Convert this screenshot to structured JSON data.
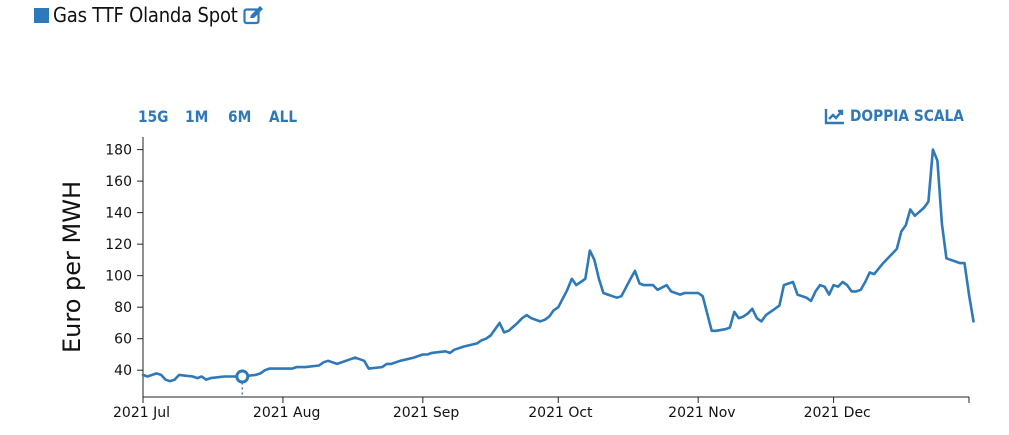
{
  "header": {
    "title": "Gas TTF Olanda Spot",
    "legend_icon": "square",
    "edit_icon": "edit-icon"
  },
  "controls": {
    "ranges": [
      "15G",
      "1M",
      "6M",
      "ALL"
    ],
    "dual_scale_label": "DOPPIA SCALA",
    "dual_scale_icon": "line-chart-icon"
  },
  "colors": {
    "accent": "#2f79b8",
    "line": "#2f79b8"
  },
  "chart_data": {
    "type": "line",
    "ylabel": "Euro per MWH",
    "ylim": [
      23,
      188
    ],
    "yticks": [
      40,
      60,
      80,
      100,
      120,
      140,
      160,
      180
    ],
    "xlim": [
      "2021-07-01",
      "2021-12-31"
    ],
    "xticks": [
      {
        "date": "2021-07-01",
        "label": "2021 Jul"
      },
      {
        "date": "2021-08-01",
        "label": "2021 Aug"
      },
      {
        "date": "2021-09-01",
        "label": "2021 Sep"
      },
      {
        "date": "2021-10-01",
        "label": "2021 Oct"
      },
      {
        "date": "2021-11-01",
        "label": "2021 Nov"
      },
      {
        "date": "2021-12-01",
        "label": "2021 Dec"
      }
    ],
    "grid": false,
    "highlight_date": "2021-07-23",
    "series": [
      {
        "points": [
          [
            "2021-07-01",
            37
          ],
          [
            "2021-07-02",
            36
          ],
          [
            "2021-07-04",
            38
          ],
          [
            "2021-07-05",
            37
          ],
          [
            "2021-07-06",
            34
          ],
          [
            "2021-07-07",
            33
          ],
          [
            "2021-07-08",
            34
          ],
          [
            "2021-07-09",
            37
          ],
          [
            "2021-07-12",
            36
          ],
          [
            "2021-07-13",
            35
          ],
          [
            "2021-07-14",
            36
          ],
          [
            "2021-07-15",
            34
          ],
          [
            "2021-07-16",
            35
          ],
          [
            "2021-07-19",
            36
          ],
          [
            "2021-07-22",
            36
          ],
          [
            "2021-07-23",
            36
          ],
          [
            "2021-07-26",
            37
          ],
          [
            "2021-07-27",
            38
          ],
          [
            "2021-07-28",
            40
          ],
          [
            "2021-07-29",
            41
          ],
          [
            "2021-07-30",
            41
          ],
          [
            "2021-08-02",
            41
          ],
          [
            "2021-08-03",
            41
          ],
          [
            "2021-08-04",
            42
          ],
          [
            "2021-08-05",
            42
          ],
          [
            "2021-08-06",
            42
          ],
          [
            "2021-08-09",
            43
          ],
          [
            "2021-08-10",
            45
          ],
          [
            "2021-08-11",
            46
          ],
          [
            "2021-08-12",
            45
          ],
          [
            "2021-08-13",
            44
          ],
          [
            "2021-08-16",
            47
          ],
          [
            "2021-08-17",
            48
          ],
          [
            "2021-08-18",
            47
          ],
          [
            "2021-08-19",
            46
          ],
          [
            "2021-08-20",
            41
          ],
          [
            "2021-08-23",
            42
          ],
          [
            "2021-08-24",
            44
          ],
          [
            "2021-08-25",
            44
          ],
          [
            "2021-08-26",
            45
          ],
          [
            "2021-08-27",
            46
          ],
          [
            "2021-08-30",
            48
          ],
          [
            "2021-08-31",
            49
          ],
          [
            "2021-09-01",
            50
          ],
          [
            "2021-09-02",
            50
          ],
          [
            "2021-09-03",
            51
          ],
          [
            "2021-09-06",
            52
          ],
          [
            "2021-09-07",
            51
          ],
          [
            "2021-09-08",
            53
          ],
          [
            "2021-09-09",
            54
          ],
          [
            "2021-09-10",
            55
          ],
          [
            "2021-09-13",
            57
          ],
          [
            "2021-09-14",
            59
          ],
          [
            "2021-09-15",
            60
          ],
          [
            "2021-09-16",
            62
          ],
          [
            "2021-09-17",
            66
          ],
          [
            "2021-09-18",
            70
          ],
          [
            "2021-09-19",
            64
          ],
          [
            "2021-09-20",
            65
          ],
          [
            "2021-09-22",
            70
          ],
          [
            "2021-09-23",
            73
          ],
          [
            "2021-09-24",
            75
          ],
          [
            "2021-09-25",
            73
          ],
          [
            "2021-09-27",
            71
          ],
          [
            "2021-09-28",
            72
          ],
          [
            "2021-09-29",
            74
          ],
          [
            "2021-09-30",
            78
          ],
          [
            "2021-10-01",
            80
          ],
          [
            "2021-10-03",
            91
          ],
          [
            "2021-10-04",
            98
          ],
          [
            "2021-10-05",
            94
          ],
          [
            "2021-10-06",
            96
          ],
          [
            "2021-10-07",
            98
          ],
          [
            "2021-10-08",
            116
          ],
          [
            "2021-10-09",
            110
          ],
          [
            "2021-10-10",
            98
          ],
          [
            "2021-10-11",
            89
          ],
          [
            "2021-10-12",
            88
          ],
          [
            "2021-10-13",
            87
          ],
          [
            "2021-10-14",
            86
          ],
          [
            "2021-10-15",
            87
          ],
          [
            "2021-10-17",
            98
          ],
          [
            "2021-10-18",
            103
          ],
          [
            "2021-10-19",
            95
          ],
          [
            "2021-10-20",
            94
          ],
          [
            "2021-10-21",
            94
          ],
          [
            "2021-10-22",
            94
          ],
          [
            "2021-10-23",
            91
          ],
          [
            "2021-10-25",
            94
          ],
          [
            "2021-10-26",
            90
          ],
          [
            "2021-10-27",
            89
          ],
          [
            "2021-10-28",
            88
          ],
          [
            "2021-10-29",
            89
          ],
          [
            "2021-11-01",
            89
          ],
          [
            "2021-11-02",
            87
          ],
          [
            "2021-11-03",
            76
          ],
          [
            "2021-11-04",
            65
          ],
          [
            "2021-11-05",
            65
          ],
          [
            "2021-11-07",
            66
          ],
          [
            "2021-11-08",
            67
          ],
          [
            "2021-11-09",
            77
          ],
          [
            "2021-11-10",
            73
          ],
          [
            "2021-11-11",
            74
          ],
          [
            "2021-11-12",
            76
          ],
          [
            "2021-11-13",
            79
          ],
          [
            "2021-11-14",
            73
          ],
          [
            "2021-11-15",
            71
          ],
          [
            "2021-11-16",
            75
          ],
          [
            "2021-11-18",
            79
          ],
          [
            "2021-11-19",
            81
          ],
          [
            "2021-11-20",
            94
          ],
          [
            "2021-11-21",
            95
          ],
          [
            "2021-11-22",
            96
          ],
          [
            "2021-11-23",
            88
          ],
          [
            "2021-11-25",
            86
          ],
          [
            "2021-11-26",
            84
          ],
          [
            "2021-11-27",
            90
          ],
          [
            "2021-11-28",
            94
          ],
          [
            "2021-11-29",
            93
          ],
          [
            "2021-11-30",
            88
          ],
          [
            "2021-12-01",
            94
          ],
          [
            "2021-12-02",
            93
          ],
          [
            "2021-12-03",
            96
          ],
          [
            "2021-12-04",
            94
          ],
          [
            "2021-12-05",
            90
          ],
          [
            "2021-12-06",
            90
          ],
          [
            "2021-12-07",
            91
          ],
          [
            "2021-12-08",
            96
          ],
          [
            "2021-12-09",
            102
          ],
          [
            "2021-12-10",
            101
          ],
          [
            "2021-12-12",
            108
          ],
          [
            "2021-12-14",
            114
          ],
          [
            "2021-12-15",
            117
          ],
          [
            "2021-12-16",
            128
          ],
          [
            "2021-12-17",
            132
          ],
          [
            "2021-12-18",
            142
          ],
          [
            "2021-12-19",
            138
          ],
          [
            "2021-12-21",
            143
          ],
          [
            "2021-12-22",
            147
          ],
          [
            "2021-12-23",
            180
          ],
          [
            "2021-12-24",
            173
          ],
          [
            "2021-12-25",
            133
          ],
          [
            "2021-12-26",
            111
          ],
          [
            "2021-12-28",
            109
          ],
          [
            "2021-12-29",
            108
          ],
          [
            "2021-12-30",
            108
          ],
          [
            "2021-12-31",
            88
          ],
          [
            "2022-01-01",
            71
          ]
        ]
      }
    ]
  }
}
